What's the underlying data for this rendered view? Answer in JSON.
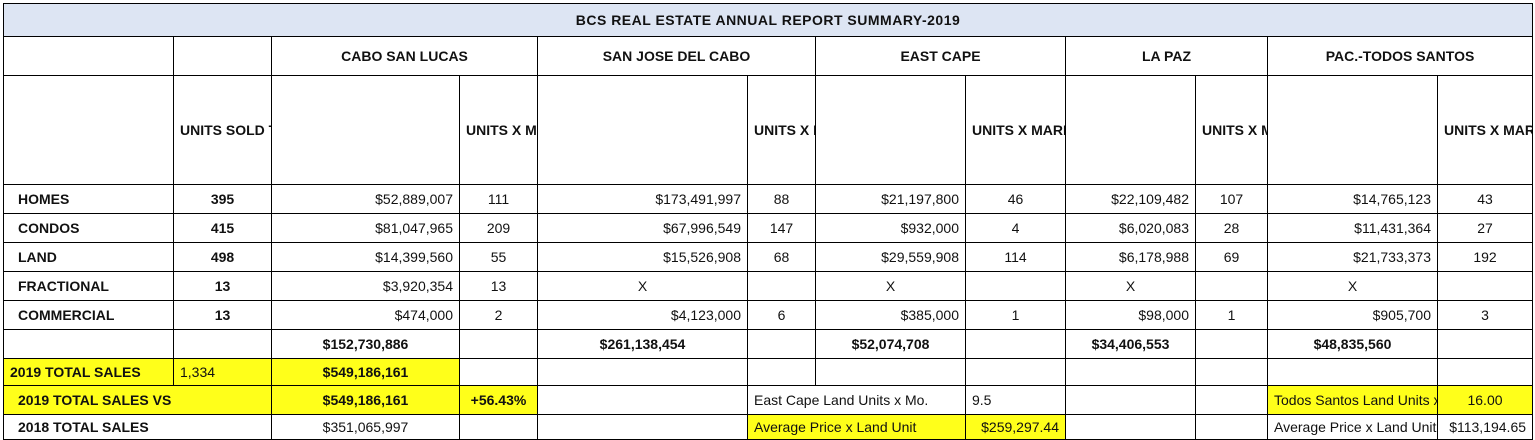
{
  "title": "BCS REAL ESTATE ANNUAL REPORT SUMMARY-2019",
  "markets": [
    "CABO SAN LUCAS",
    "SAN JOSE DEL CABO",
    "EAST CAPE",
    "LA PAZ",
    "PAC.-TODOS SANTOS"
  ],
  "headers": {
    "units_sold_total": "UNITS SOLD TOTAL",
    "units_x_market": "UNITS X MARKET"
  },
  "rows": [
    {
      "label": "HOMES",
      "units": "395",
      "csl_amt": "$52,889,007",
      "csl_units": "111",
      "sjd_amt": "$173,491,997",
      "sjd_units": "88",
      "ec_amt": "$21,197,800",
      "ec_units": "46",
      "lp_amt": "$22,109,482",
      "lp_units": "107",
      "ts_amt": "$14,765,123",
      "ts_units": "43"
    },
    {
      "label": "CONDOS",
      "units": "415",
      "csl_amt": "$81,047,965",
      "csl_units": "209",
      "sjd_amt": "$67,996,549",
      "sjd_units": "147",
      "ec_amt": "$932,000",
      "ec_units": "4",
      "lp_amt": "$6,020,083",
      "lp_units": "28",
      "ts_amt": "$11,431,364",
      "ts_units": "27"
    },
    {
      "label": "LAND",
      "units": "498",
      "csl_amt": "$14,399,560",
      "csl_units": "55",
      "sjd_amt": "$15,526,908",
      "sjd_units": "68",
      "ec_amt": "$29,559,908",
      "ec_units": "114",
      "lp_amt": "$6,178,988",
      "lp_units": "69",
      "ts_amt": "$21,733,373",
      "ts_units": "192"
    },
    {
      "label": "FRACTIONAL",
      "units": "13",
      "csl_amt": "$3,920,354",
      "csl_units": "13",
      "sjd_amt": "X",
      "sjd_units": "",
      "ec_amt": "X",
      "ec_units": "",
      "lp_amt": "X",
      "lp_units": "",
      "ts_amt": "X",
      "ts_units": ""
    },
    {
      "label": "COMMERCIAL",
      "units": "13",
      "csl_amt": "$474,000",
      "csl_units": "2",
      "sjd_amt": "$4,123,000",
      "sjd_units": "6",
      "ec_amt": "$385,000",
      "ec_units": "1",
      "lp_amt": "$98,000",
      "lp_units": "1",
      "ts_amt": "$905,700",
      "ts_units": "3"
    }
  ],
  "totals": {
    "csl": "$152,730,886",
    "sjd": "$261,138,454",
    "ec": "$52,074,708",
    "lp": "$34,406,553",
    "ts": "$48,835,560"
  },
  "total_sales_2019": {
    "label": "2019 TOTAL SALES",
    "units": "1,334",
    "amount": "$549,186,161"
  },
  "comparison": {
    "vs_label": "2019 TOTAL SALES VS",
    "vs_amount": "$549,186,161",
    "change": "+56.43%",
    "label_2018": "2018 TOTAL SALES",
    "amount_2018": "$351,065,997"
  },
  "east_cape_notes": {
    "land_units_label": "East Cape Land Units x Mo.",
    "land_units_value": "9.5",
    "avg_price_label": "Average Price x Land Unit",
    "avg_price_value": "$259,297.44"
  },
  "todos_santos_notes": {
    "land_units_label": "Todos Santos Land Units x Mo",
    "land_units_value": "16.00",
    "avg_price_label": "Average Price x Land Unit:",
    "avg_price_value": "$113,194.65"
  },
  "colors": {
    "highlight": "#ffff1a",
    "title_bg": "#dde5f3"
  }
}
